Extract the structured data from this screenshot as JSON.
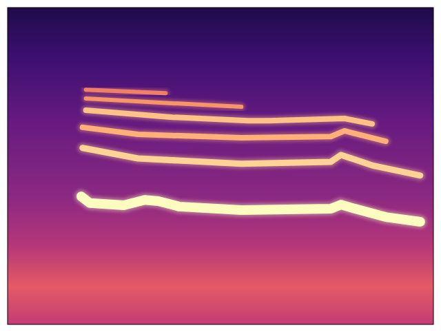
{
  "chart_data": {
    "type": "spectrogram",
    "tick_labels": false,
    "xlim": [
      0,
      100
    ],
    "ylim": [
      0,
      100
    ],
    "series": [
      {
        "color": "#fcfdbf",
        "x": [
          17.3,
          19.3,
          27.3,
          32.2,
          35.4,
          40.3,
          54.9,
          75.9,
          78.3,
          81.6,
          88.8,
          96.9
        ],
        "values": [
          40.4,
          38.3,
          37.6,
          39.3,
          38.9,
          37.2,
          36.1,
          36.5,
          37.8,
          36.5,
          33.9,
          32.4
        ]
      },
      {
        "color": "#fed395",
        "x": [
          17.6,
          30.6,
          54.9,
          75.9,
          78.3,
          85.6,
          96.9
        ],
        "values": [
          55.7,
          52.4,
          50.7,
          51.3,
          53.5,
          50.2,
          47.0
        ]
      },
      {
        "color": "#feb078",
        "x": [
          17.6,
          30.6,
          54.9,
          75.9,
          79.1,
          88.8
        ],
        "values": [
          62.2,
          60.0,
          58.9,
          59.3,
          61.1,
          57.8
        ]
      },
      {
        "color": "#fec287",
        "x": [
          18.4,
          38.7,
          56.5,
          61.3,
          79.1,
          85.6
        ],
        "values": [
          67.6,
          65.4,
          64.3,
          64.3,
          65.0,
          63.3
        ]
      },
      {
        "color": "#f8946a",
        "x": [
          18.4,
          38.7,
          54.9
        ],
        "values": [
          71.3,
          69.8,
          68.7
        ]
      },
      {
        "color": "#f07f68",
        "x": [
          18.4,
          37.1
        ],
        "values": [
          74.1,
          73.0
        ]
      }
    ]
  }
}
